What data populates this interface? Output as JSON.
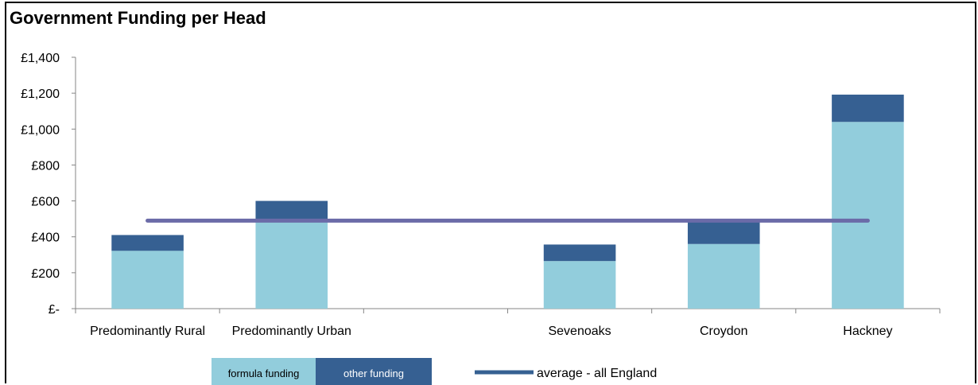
{
  "chart_data": {
    "type": "bar",
    "stacked": true,
    "title": "Government Funding per Head",
    "categories": [
      "Predominantly Rural",
      "Predominantly Urban",
      "",
      "Sevenoaks",
      "Croydon",
      "Hackney"
    ],
    "y_tick_labels": [
      "£-",
      "£200",
      "£400",
      "£600",
      "£800",
      "£1,000",
      "£1,200",
      "£1,400"
    ],
    "y_ticks": [
      0,
      200,
      400,
      600,
      800,
      1000,
      1200,
      1400
    ],
    "ylim": [
      0,
      1400
    ],
    "series": [
      {
        "name": "formula funding",
        "values": [
          322,
          485,
          null,
          265,
          360,
          1040
        ],
        "color": "#92CDDC"
      },
      {
        "name": "other funding",
        "values": [
          88,
          115,
          null,
          92,
          128,
          152
        ],
        "color": "#366092"
      }
    ],
    "reference_line": {
      "name": "average - all England",
      "value": 490,
      "color": "#6B6BA8"
    },
    "legend_placement": "bottom",
    "grid": false
  }
}
